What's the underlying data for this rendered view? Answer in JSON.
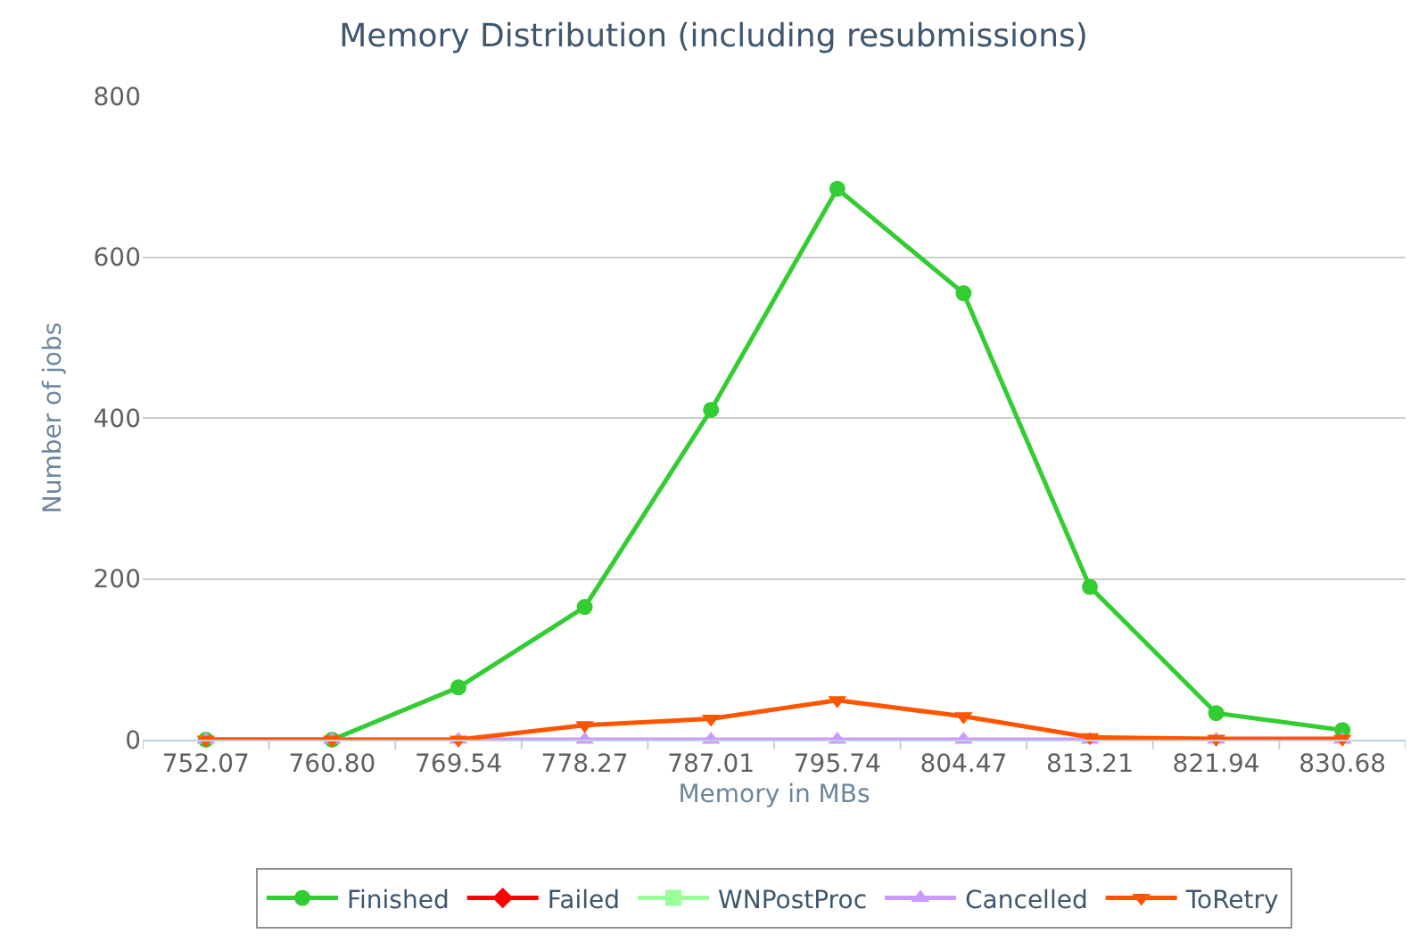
{
  "chart_data": {
    "type": "line",
    "title": "Memory Distribution (including resubmissions)",
    "xlabel": "Memory in MBs",
    "ylabel": "Number of jobs",
    "categories": [
      "752.07",
      "760.80",
      "769.54",
      "778.27",
      "787.01",
      "795.74",
      "804.47",
      "813.21",
      "821.94",
      "830.68"
    ],
    "series": [
      {
        "name": "Finished",
        "color": "#33cc33",
        "marker": "circle",
        "values": [
          0,
          0,
          65,
          165,
          410,
          685,
          555,
          190,
          33,
          12
        ]
      },
      {
        "name": "Failed",
        "color": "#ff0000",
        "marker": "diamond",
        "values": [
          null,
          null,
          null,
          null,
          null,
          null,
          null,
          null,
          null,
          null
        ]
      },
      {
        "name": "WNPostProc",
        "color": "#99ff99",
        "marker": "square",
        "values": [
          null,
          null,
          null,
          null,
          null,
          null,
          null,
          null,
          null,
          null
        ]
      },
      {
        "name": "Cancelled",
        "color": "#cc99ff",
        "marker": "triangle",
        "values": [
          0,
          0,
          0,
          0,
          0,
          0,
          0,
          0,
          0,
          0
        ]
      },
      {
        "name": "ToRetry",
        "color": "#ff5500",
        "marker": "triangle-down",
        "values": [
          0,
          0,
          0,
          18,
          26,
          49,
          29,
          3,
          1,
          1
        ]
      }
    ],
    "ylim": [
      0,
      800
    ],
    "yticks": [
      0,
      200,
      400,
      600,
      800
    ],
    "grid": "y",
    "legend": "bottom"
  }
}
